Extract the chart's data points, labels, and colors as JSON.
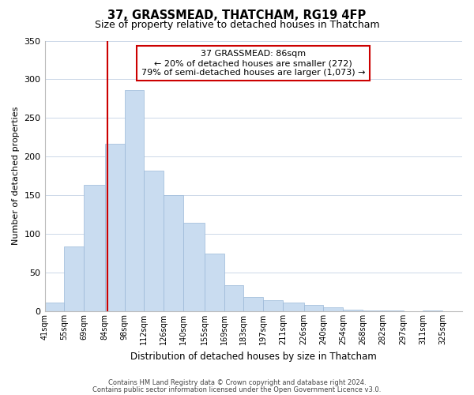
{
  "title": "37, GRASSMEAD, THATCHAM, RG19 4FP",
  "subtitle": "Size of property relative to detached houses in Thatcham",
  "xlabel": "Distribution of detached houses by size in Thatcham",
  "ylabel": "Number of detached properties",
  "bin_labels": [
    "41sqm",
    "55sqm",
    "69sqm",
    "84sqm",
    "98sqm",
    "112sqm",
    "126sqm",
    "140sqm",
    "155sqm",
    "169sqm",
    "183sqm",
    "197sqm",
    "211sqm",
    "226sqm",
    "240sqm",
    "254sqm",
    "268sqm",
    "282sqm",
    "297sqm",
    "311sqm",
    "325sqm"
  ],
  "bin_edges": [
    41,
    55,
    69,
    84,
    98,
    112,
    126,
    140,
    155,
    169,
    183,
    197,
    211,
    226,
    240,
    254,
    268,
    282,
    297,
    311,
    325
  ],
  "bar_values": [
    11,
    84,
    164,
    217,
    286,
    182,
    150,
    114,
    75,
    34,
    18,
    14,
    11,
    8,
    5,
    2,
    1,
    1,
    0,
    1
  ],
  "bar_color": "#c9dcf0",
  "bar_edge_color": "#9ab8d8",
  "vline_x": 86,
  "vline_color": "#cc0000",
  "annotation_title": "37 GRASSMEAD: 86sqm",
  "annotation_line1": "← 20% of detached houses are smaller (272)",
  "annotation_line2": "79% of semi-detached houses are larger (1,073) →",
  "annotation_box_color": "#ffffff",
  "annotation_box_edge": "#cc0000",
  "ylim": [
    0,
    350
  ],
  "yticks": [
    0,
    50,
    100,
    150,
    200,
    250,
    300,
    350
  ],
  "footer1": "Contains HM Land Registry data © Crown copyright and database right 2024.",
  "footer2": "Contains public sector information licensed under the Open Government Licence v3.0.",
  "bg_color": "#ffffff",
  "grid_color": "#ccd8e8"
}
